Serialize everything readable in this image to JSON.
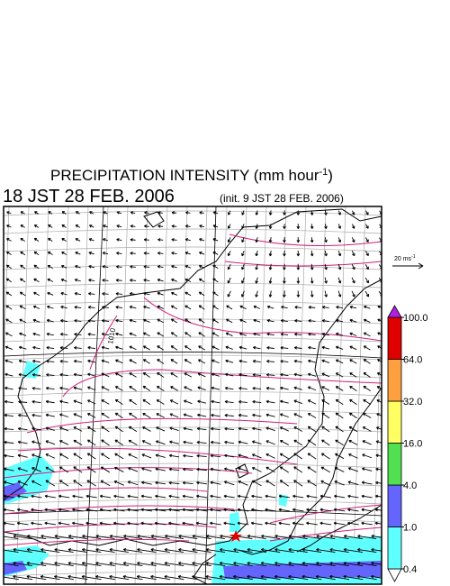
{
  "header": {
    "title": "PRECIPITATION INTENSITY (mm hour",
    "title_exponent": "-1",
    "title_close": ")",
    "valid_time": "18 JST 28 FEB. 2006",
    "init_time": "(init. 9 JST 28 FEB. 2006)"
  },
  "wind_scale": {
    "label": "20 ms",
    "exponent": "-1"
  },
  "colorbar": {
    "levels": [
      {
        "value": 0.4,
        "label": "0.4"
      },
      {
        "value": 1,
        "label": "1.0"
      },
      {
        "value": 4,
        "label": "4.0"
      },
      {
        "value": 16,
        "label": "16.0"
      },
      {
        "value": 32,
        "label": "32.0"
      },
      {
        "value": 64,
        "label": "64.0"
      },
      {
        "value": 100,
        "label": "100.0"
      }
    ],
    "colors": [
      "#ffffff",
      "#60ffff",
      "#6464ff",
      "#50e050",
      "#ffff64",
      "#ffa040",
      "#e00000",
      "#b020e0"
    ]
  },
  "contour_labels": [
    "1010"
  ]
}
